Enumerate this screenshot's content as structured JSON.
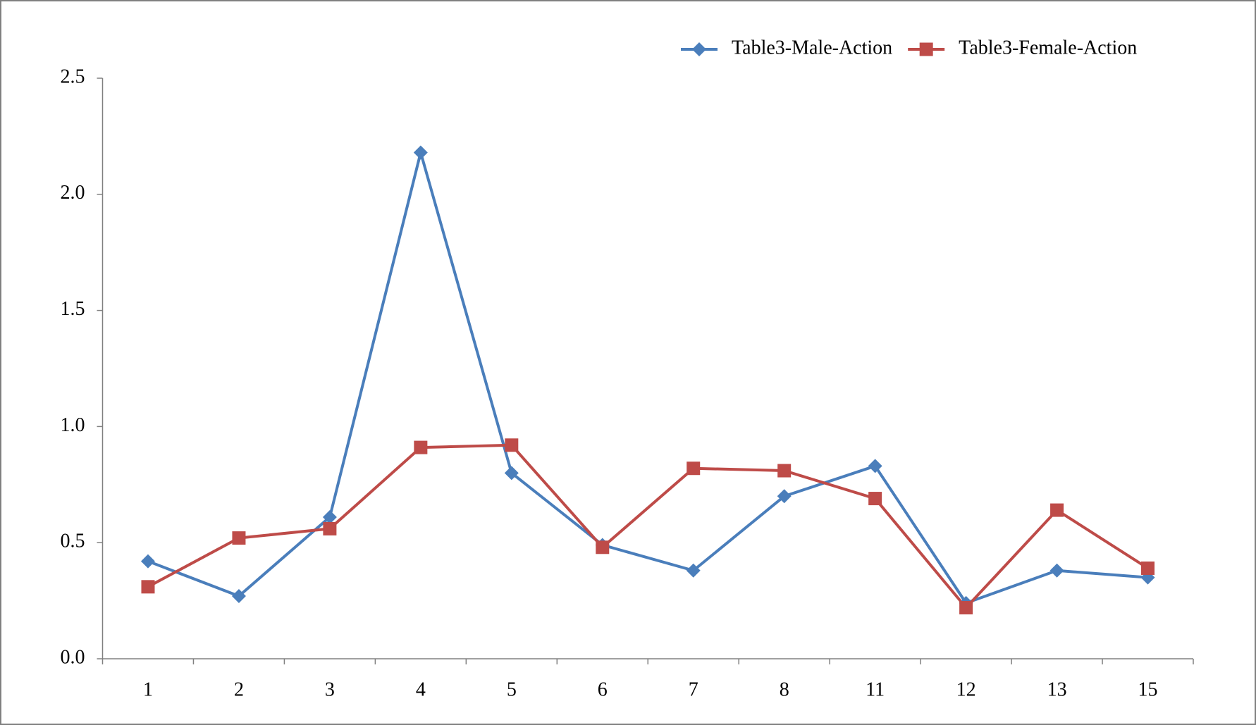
{
  "chart_data": {
    "type": "line",
    "categories": [
      "1",
      "2",
      "3",
      "4",
      "5",
      "6",
      "7",
      "8",
      "11",
      "12",
      "13",
      "15"
    ],
    "series": [
      {
        "name": "Table3-Male-Action",
        "color": "#4a7ebb",
        "marker": "diamond",
        "values": [
          0.42,
          0.27,
          0.61,
          2.18,
          0.8,
          0.49,
          0.38,
          0.7,
          0.83,
          0.24,
          0.38,
          0.35
        ]
      },
      {
        "name": "Table3-Female-Action",
        "color": "#be4b48",
        "marker": "square",
        "values": [
          0.31,
          0.52,
          0.56,
          0.91,
          0.92,
          0.48,
          0.82,
          0.81,
          0.69,
          0.22,
          0.64,
          0.39
        ]
      }
    ],
    "ylim": [
      0,
      2.5
    ],
    "yticks": [
      {
        "value": 0,
        "label": "0.0"
      },
      0.5,
      {
        "value": 1,
        "label": "1.0"
      },
      1.5,
      {
        "value": 2,
        "label": "2.0"
      },
      2.5
    ],
    "grid": false,
    "legend": "top-right"
  }
}
